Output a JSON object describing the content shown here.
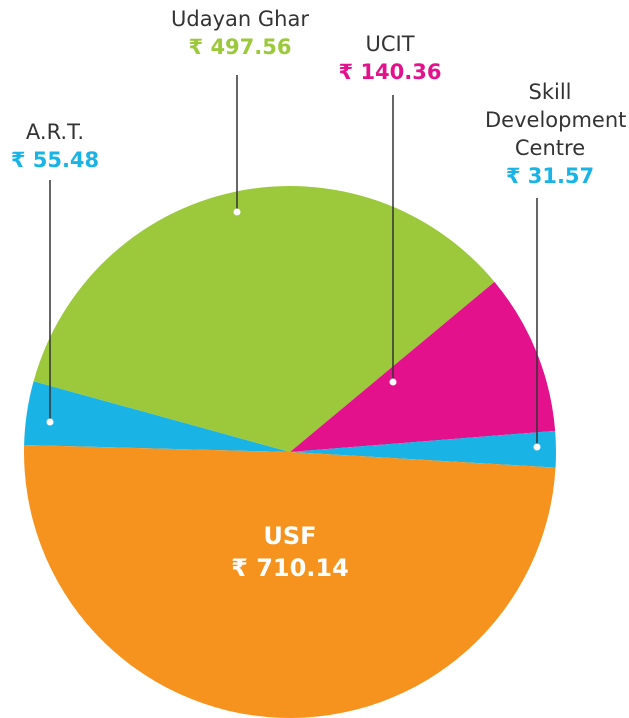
{
  "chart_data": {
    "type": "pie",
    "categories": [
      "A.R.T.",
      "Udayan Ghar",
      "UCIT",
      "Skill Development Centre",
      "USF"
    ],
    "values": [
      55.48,
      497.56,
      140.36,
      31.57,
      710.14
    ],
    "value_labels": [
      "₹ 55.48",
      "₹ 497.56",
      "₹ 140.36",
      "₹ 31.57",
      "₹ 710.14"
    ],
    "colors": [
      "#1ab3e6",
      "#9cc93b",
      "#e3118b",
      "#1ab3e6",
      "#f6931f"
    ]
  }
}
